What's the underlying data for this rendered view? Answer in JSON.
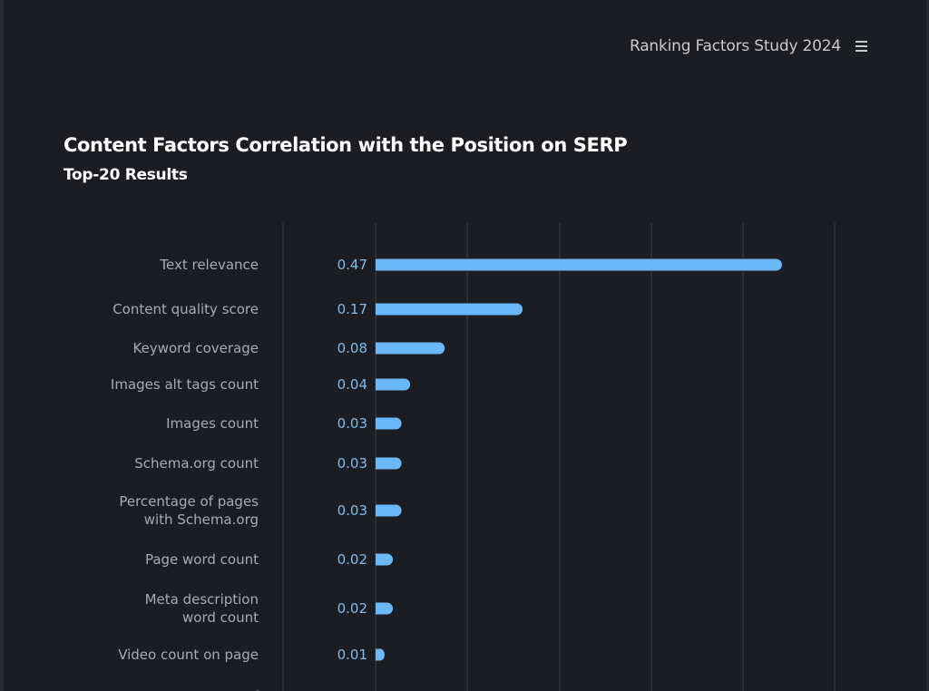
{
  "header": {
    "brand": "Ranking Factors Study 2024",
    "menu_icon": "hamburger-menu-icon"
  },
  "chart_data": {
    "type": "bar",
    "orientation": "horizontal",
    "title": "Content Factors Correlation with the Position on SERP",
    "subtitle": "Top-20 Results",
    "categories": [
      [
        "Text relevance"
      ],
      [
        "Content quality score"
      ],
      [
        "Keyword coverage"
      ],
      [
        "Images alt tags count"
      ],
      [
        "Images count"
      ],
      [
        "Schema.org count"
      ],
      [
        "Percentage of pages",
        "with Schema.org"
      ],
      [
        "Page word count"
      ],
      [
        "Meta description",
        "word count"
      ],
      [
        "Video count on page"
      ],
      [
        "Percentage of"
      ]
    ],
    "values": [
      0.47,
      0.17,
      0.08,
      0.04,
      0.03,
      0.03,
      0.03,
      0.02,
      0.02,
      0.01,
      null
    ],
    "value_labels": [
      "0.47",
      "0.17",
      "0.08",
      "0.04",
      "0.03",
      "0.03",
      "0.03",
      "0.02",
      "0.02",
      "0.01",
      ""
    ],
    "bar_color": "#6ab8f7",
    "grid": true,
    "legend": "none"
  }
}
